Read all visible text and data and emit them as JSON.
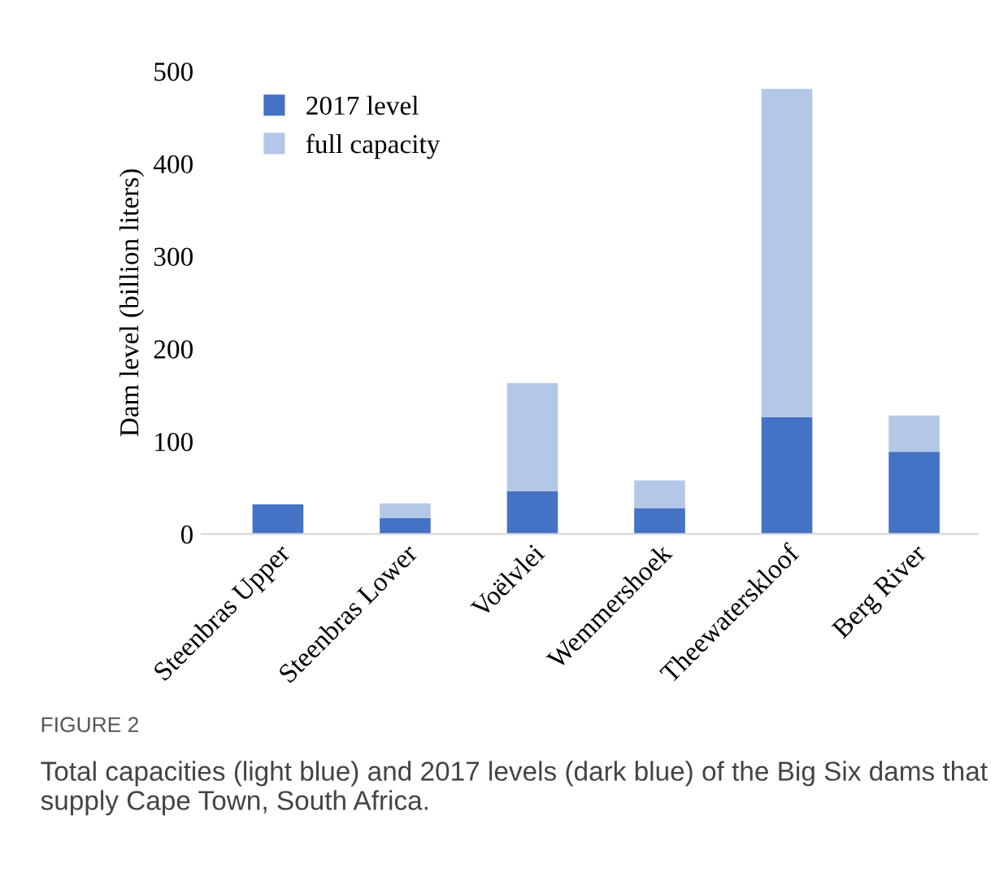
{
  "chart_data": {
    "type": "bar",
    "stacked": true,
    "categories": [
      "Steenbras Upper",
      "Steenbras Lower",
      "Voëlvlei",
      "Wemmershoek",
      "Theewaterskloof",
      "Berg River"
    ],
    "series": [
      {
        "name": "2017 level",
        "color": "#4472c4",
        "values": [
          32,
          17,
          46,
          28,
          126,
          89
        ]
      },
      {
        "name": "full capacity",
        "color": "#b4c7e7",
        "values": [
          0,
          16,
          117,
          30,
          355,
          39
        ]
      }
    ],
    "ylabel": "Dam level (billion liters)",
    "ylim": [
      0,
      500
    ],
    "yticks": [
      0,
      100,
      200,
      300,
      400,
      500
    ],
    "grid": false,
    "legend": "top left",
    "annotations": [
      "FIGURE 2",
      "Total capacities (light blue) and 2017 levels (dark blue) of the Big Six dams that supply Cape Town, South Africa."
    ]
  }
}
